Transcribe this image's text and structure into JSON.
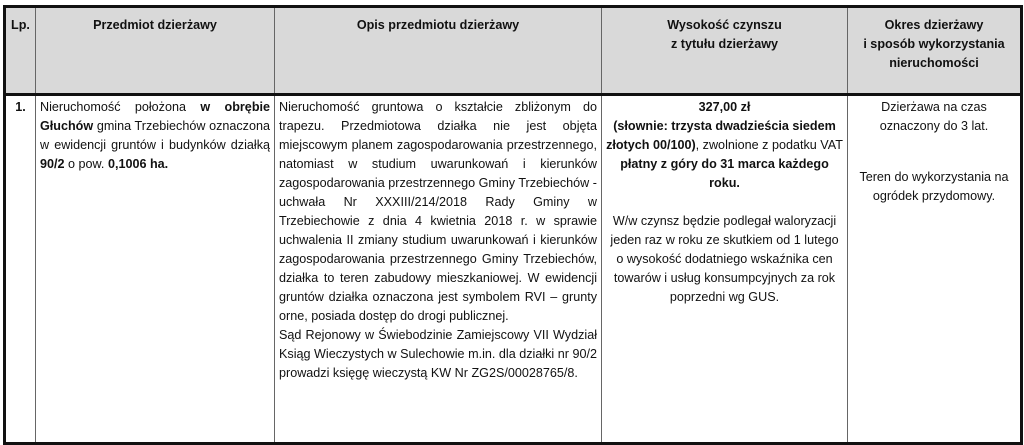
{
  "table": {
    "headers": {
      "lp": "Lp.",
      "przedmiot": "Przedmiot dzierżawy",
      "opis": "Opis przedmiotu dzierżawy",
      "czynsz_line1": "Wysokość czynszu",
      "czynsz_line2": "z tytułu dzierżawy",
      "okres_line1": "Okres dzierżawy",
      "okres_line2": "i sposób wykorzystania",
      "okres_line3": "nieruchomości"
    },
    "rows": [
      {
        "lp": "1.",
        "przedmiot": {
          "t1": "Nieruchomość położona ",
          "b1": "w obrębie Głuchów",
          "t2": " gmina Trzebiechów oznaczona w ewidencji gruntów i budynków działką ",
          "b2": "90/2",
          "t3": " o pow. ",
          "b3": "0,1006 ha."
        },
        "opis": {
          "p1": "Nieruchomość gruntowa o kształcie zbliżonym do trapezu. Przedmiotowa działka nie jest objęta miejscowym planem zagospodarowania przestrzennego, natomiast w studium uwarunkowań i kierunków zagospodarowania przestrzennego Gminy Trzebiechów - uchwała Nr XXXIII/214/2018 Rady Gminy w Trzebiechowie z dnia 4 kwietnia 2018 r. w sprawie uchwalenia II zmiany studium uwarunkowań i kierunków zagospodarowania przestrzennego Gminy Trzebiechów, działka to teren zabudowy mieszkaniowej. W ewidencji gruntów działka oznaczona jest symbolem RVI – grunty orne, posiada dostęp do drogi publicznej.",
          "p2": "Sąd Rejonowy w Świebodzinie Zamiejscowy VII Wydział Ksiąg Wieczystych w Sulechowie m.in. dla działki nr 90/2 prowadzi księgę wieczystą KW Nr ZG2S/00028765/8."
        },
        "czynsz": {
          "amount": "327,00 zł",
          "slownie": "(słownie: trzysta dwadzieścia siedem złotych 00/100)",
          "vat": ", zwolnione z podatku VAT",
          "platny": "płatny z góry do 31 marca każdego roku.",
          "waloryzacja": "W/w czynsz będzie podlegał waloryzacji jeden raz w roku ze skutkiem od 1 lutego o wysokość dodatniego wskaźnika cen towarów i usług konsumpcyjnych za rok poprzedni wg GUS."
        },
        "okres": {
          "p1": "Dzierżawa na czas oznaczony do 3 lat.",
          "p2": "Teren do wykorzystania na ogródek przydomowy."
        }
      }
    ]
  }
}
